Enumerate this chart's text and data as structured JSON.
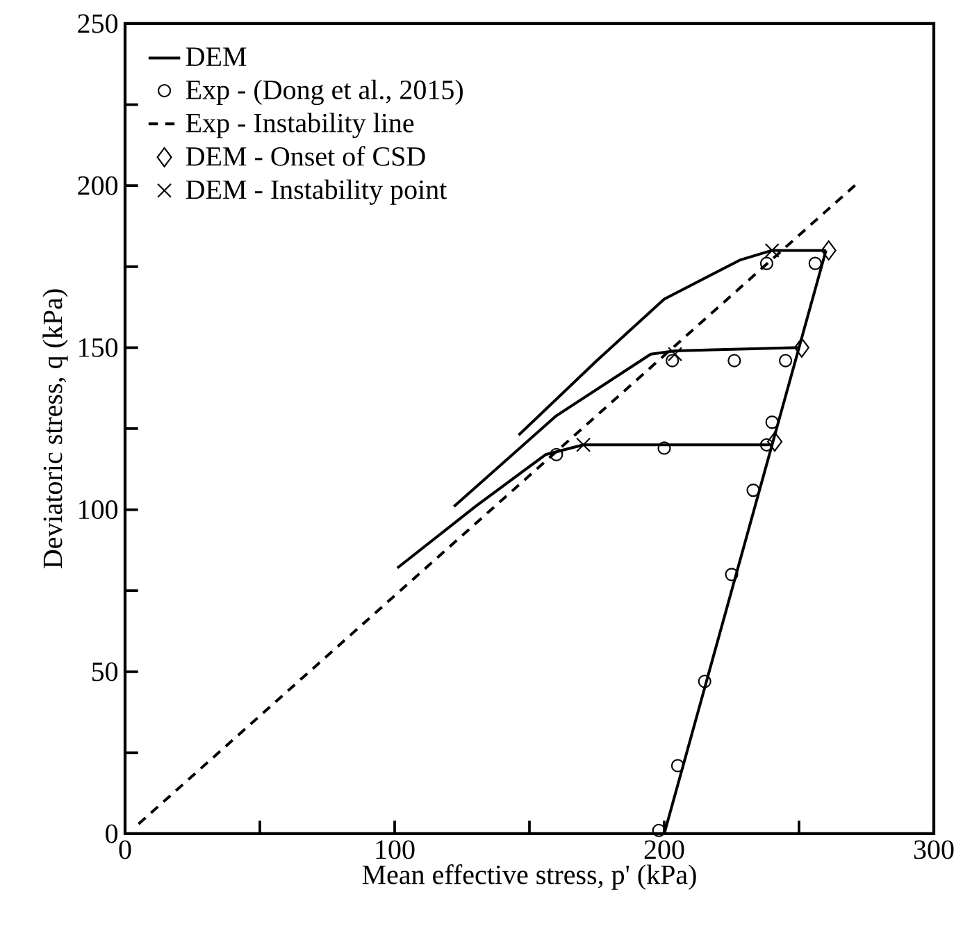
{
  "chart_data": {
    "type": "line",
    "xlabel": "Mean effective stress, p' (kPa)",
    "ylabel": "Deviatoric stress, q (kPa)",
    "xlim": [
      0,
      300
    ],
    "ylim": [
      0,
      250
    ],
    "xticks": [
      0,
      {
        "value": 50,
        "label": null
      },
      100,
      {
        "value": 150,
        "label": null
      },
      200,
      {
        "value": 250,
        "label": null
      },
      300
    ],
    "yticks": [
      0,
      {
        "value": 25,
        "label": null
      },
      50,
      {
        "value": 75,
        "label": null
      },
      100,
      {
        "value": 125,
        "label": null
      },
      150,
      {
        "value": 175,
        "label": null
      },
      200,
      {
        "value": 225,
        "label": null
      },
      250
    ],
    "grid": false,
    "legend": "top left",
    "series": [
      {
        "name": "DEM",
        "color": "#000000",
        "line_style": "solid",
        "marker": "none",
        "x": [
          200,
          260
        ],
        "values": [
          0,
          180
        ]
      },
      {
        "name": "Exp - (Dong et al., 2015)",
        "type": "scatter",
        "color": "#000000",
        "marker": "circle",
        "x": [
          198,
          205,
          215,
          225,
          233,
          240,
          238,
          160,
          200,
          245,
          226,
          203,
          238,
          256
        ],
        "values": [
          1,
          21,
          47,
          80,
          106,
          127,
          120,
          117,
          119,
          146,
          146,
          146,
          176,
          176
        ]
      },
      {
        "name": "Exp - Instability line",
        "color": "#000000",
        "line_style": "dashed",
        "marker": "none",
        "x": [
          5,
          272
        ],
        "values": [
          3,
          201
        ]
      },
      {
        "name": "DEM - Onset of CSD",
        "type": "scatter",
        "color": "#000000",
        "marker": "diamond",
        "x": [
          241,
          251,
          261
        ],
        "values": [
          121,
          150,
          180
        ]
      },
      {
        "name": "DEM - Instability point",
        "type": "scatter",
        "color": "#000000",
        "marker": "cross",
        "x": [
          170,
          204,
          240
        ],
        "values": [
          120,
          148,
          180
        ]
      },
      {
        "color": "#000000",
        "line_style": "solid",
        "marker": "none",
        "x": [
          101,
          130,
          156,
          170,
          240
        ],
        "values": [
          82,
          101,
          117,
          120,
          120
        ]
      },
      {
        "color": "#000000",
        "line_style": "solid",
        "marker": "none",
        "x": [
          122,
          160,
          195,
          204,
          250
        ],
        "values": [
          101,
          129,
          148,
          149,
          150
        ]
      },
      {
        "color": "#000000",
        "line_style": "solid",
        "marker": "none",
        "x": [
          146,
          175,
          200,
          228,
          240,
          260
        ],
        "values": [
          123,
          146,
          165,
          177,
          180,
          180
        ]
      }
    ]
  }
}
